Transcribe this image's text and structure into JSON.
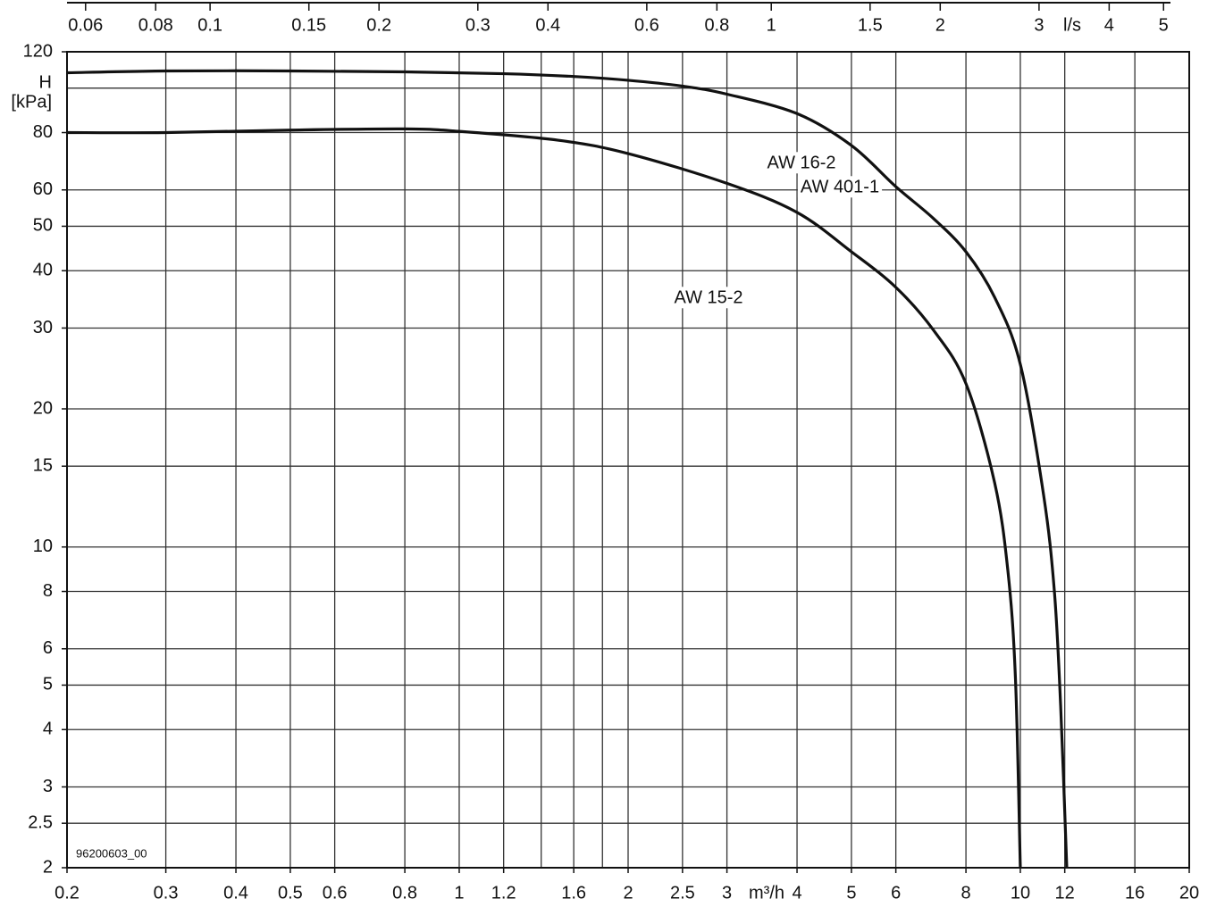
{
  "chart_data": {
    "type": "line",
    "y_label": "H",
    "y_unit": "[kPa]",
    "x_unit": "m³/h",
    "x2_unit": "l/s",
    "code": "96200603_00",
    "log_x": true,
    "log_y": true,
    "grid": true,
    "xlim": [
      0.2,
      20
    ],
    "ylim": [
      2,
      120
    ],
    "x2lim": [
      0.0556,
      5.556
    ],
    "xticks": [
      0.2,
      0.3,
      0.4,
      0.5,
      0.6,
      0.8,
      1,
      1.2,
      1.6,
      2,
      2.5,
      3,
      4,
      5,
      6,
      8,
      10,
      12,
      16,
      20
    ],
    "xgrid": [
      0.3,
      0.4,
      0.5,
      0.6,
      0.8,
      1,
      1.2,
      1.4,
      1.6,
      1.8,
      2,
      2.5,
      3,
      4,
      5,
      6,
      8,
      10,
      12,
      16
    ],
    "x2ticks": [
      0.06,
      0.08,
      0.1,
      0.15,
      0.2,
      0.3,
      0.4,
      0.6,
      0.8,
      1,
      1.5,
      2,
      3,
      4,
      5
    ],
    "yticks": [
      2,
      2.5,
      3,
      4,
      5,
      6,
      8,
      10,
      15,
      20,
      30,
      40,
      50,
      60,
      80,
      120
    ],
    "ygrid": [
      2.5,
      3,
      4,
      5,
      6,
      8,
      10,
      15,
      20,
      30,
      40,
      50,
      60,
      80,
      100
    ],
    "series": [
      {
        "labels": [
          "AW 16-2",
          "AW 401-1"
        ],
        "color": "#111111",
        "x": [
          0.2,
          0.3,
          0.5,
          0.8,
          1.2,
          1.6,
          2,
          2.5,
          3,
          4,
          5,
          6,
          7,
          8,
          9,
          10,
          11,
          11.5,
          11.8,
          12.1
        ],
        "values": [
          108,
          109,
          109,
          108.5,
          107.5,
          106,
          104,
          101,
          97,
          88,
          75,
          61,
          52,
          44,
          35,
          25,
          13,
          8,
          4.5,
          2
        ]
      },
      {
        "labels": [
          "AW 15-2"
        ],
        "color": "#111111",
        "x": [
          0.2,
          0.3,
          0.5,
          0.8,
          1,
          1.5,
          2,
          3,
          4,
          5,
          6,
          7,
          8,
          9,
          9.5,
          9.8,
          10
        ],
        "values": [
          80,
          80,
          81,
          81.5,
          80.5,
          77,
          72,
          62,
          53.6,
          44,
          36.8,
          29.7,
          22.7,
          13.8,
          8.9,
          5.2,
          2
        ]
      }
    ]
  }
}
